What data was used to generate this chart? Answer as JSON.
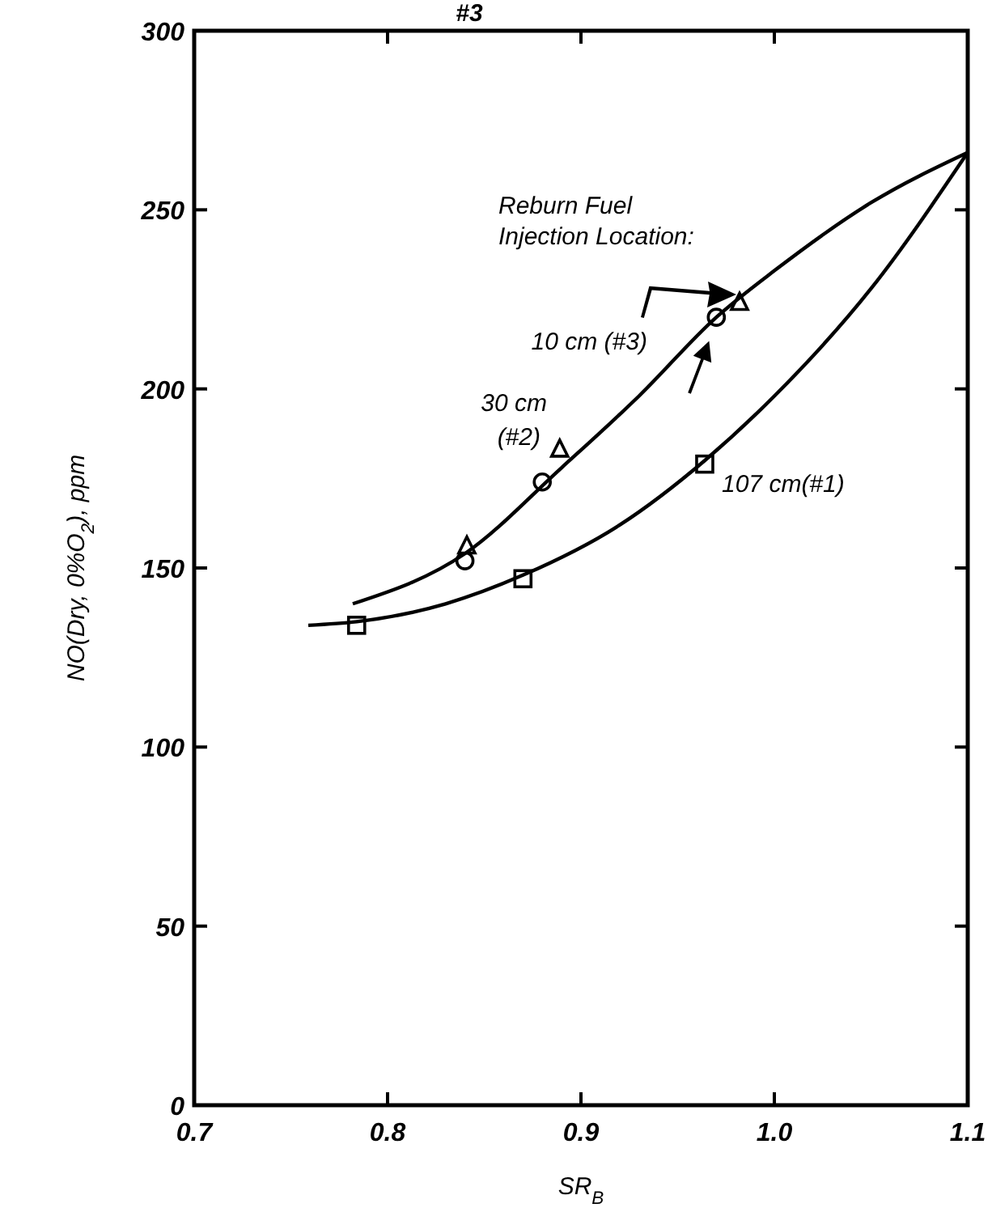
{
  "chart_data": {
    "type": "scatter",
    "title": "#3",
    "xlabel": "SR$_{B}$",
    "ylabel": "NO(Dry, 0%O$_{2}$), ppm",
    "xlim": [
      0.7,
      1.1
    ],
    "ylim": [
      0,
      300
    ],
    "xticks": [
      {
        "value": 0.7,
        "label": "0.7"
      },
      {
        "value": 0.8,
        "label": "0.8"
      },
      {
        "value": 0.9,
        "label": "0.9"
      },
      {
        "value": 1.0,
        "label": "1.0"
      },
      {
        "value": 1.1,
        "label": "1.1"
      }
    ],
    "yticks": [
      0,
      50,
      100,
      150,
      200,
      250,
      300
    ],
    "grid": false,
    "legend": false,
    "line_style": "solid",
    "annotations": [
      "Reburn Fuel Injection Location:"
    ],
    "series": [
      {
        "name": "10 cm (#3)",
        "color": "#000000",
        "marker": "circle",
        "x": [
          0.84,
          0.88,
          0.97
        ],
        "values": [
          152,
          174,
          220
        ]
      },
      {
        "name": "30 cm (#2)",
        "color": "#000000",
        "marker": "triangle",
        "x": [
          0.841,
          0.889,
          0.982
        ],
        "values": [
          156,
          183,
          224
        ]
      },
      {
        "name": "107 cm(#1)",
        "color": "#000000",
        "marker": "square",
        "x": [
          0.784,
          0.87,
          0.964
        ],
        "values": [
          134,
          147,
          179
        ]
      },
      {
        "type": "line",
        "color": "#000000",
        "marker": "none",
        "x": [
          0.782,
          0.84,
          0.89,
          0.93,
          0.97,
          1.0,
          1.05,
          1.1
        ],
        "values": [
          140,
          154,
          178,
          198,
          220,
          233,
          252,
          266
        ]
      },
      {
        "type": "line",
        "color": "#000000",
        "marker": "none",
        "x": [
          0.759,
          0.784,
          0.83,
          0.87,
          0.92,
          0.964,
          1.0,
          1.05,
          1.1
        ],
        "values": [
          134,
          135,
          140,
          148,
          162,
          180,
          198,
          228,
          266
        ]
      }
    ]
  }
}
